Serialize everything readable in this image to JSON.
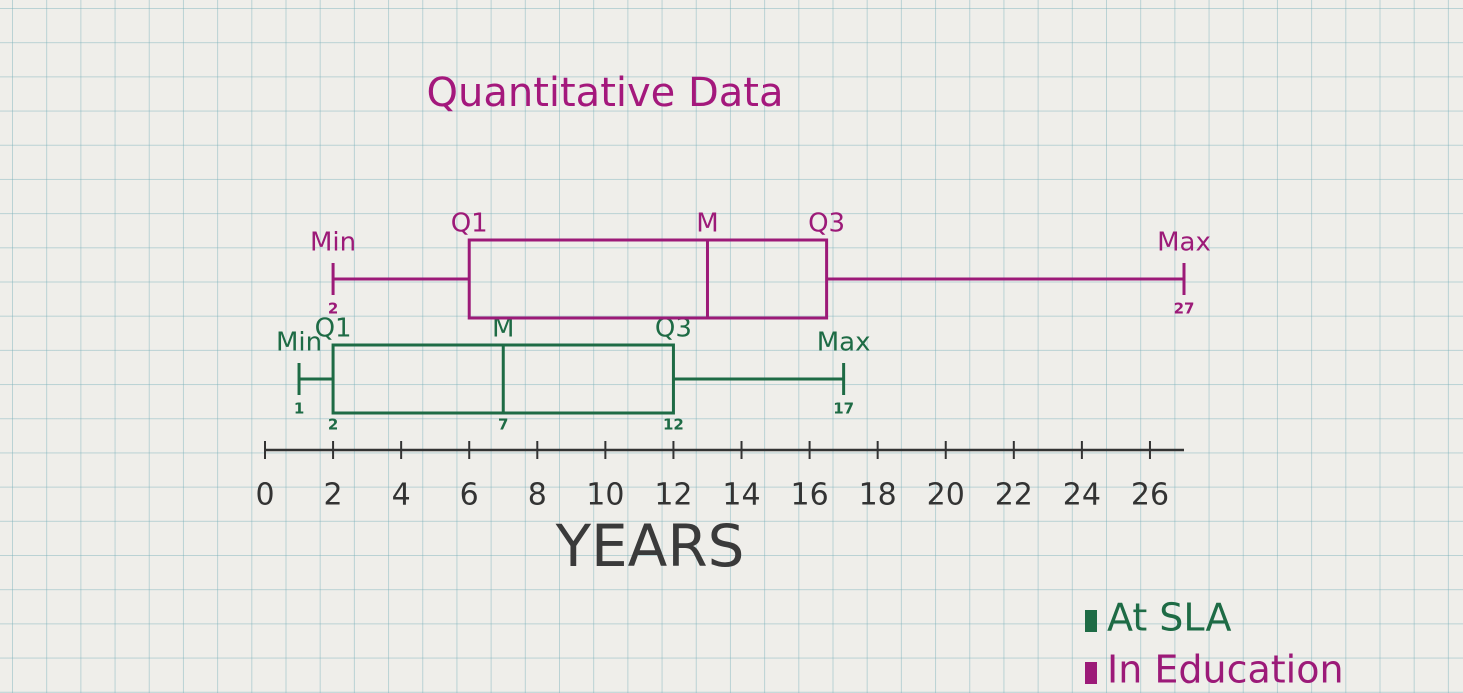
{
  "chart_data": {
    "type": "boxplot",
    "title": "Quantitative Data",
    "x_label": "YEARS",
    "xlim": [
      0,
      27
    ],
    "xticks": [
      0,
      2,
      4,
      6,
      8,
      10,
      12,
      14,
      16,
      18,
      20,
      22,
      24,
      26
    ],
    "legend": "bottom-right",
    "series": [
      {
        "name": "At SLA",
        "color": "#1e6b45",
        "labels": [
          "Min",
          "Q1",
          "M",
          "Q3",
          "Max"
        ],
        "values": [
          1,
          2,
          7,
          12,
          17
        ],
        "value_labels": [
          "1",
          "2",
          "7",
          "12",
          "17"
        ]
      },
      {
        "name": "In Education",
        "color": "#9c1a78",
        "labels": [
          "Min",
          "Q1",
          "M",
          "Q3",
          "Max"
        ],
        "values": [
          2,
          6,
          13,
          16.5,
          27
        ],
        "value_labels": [
          "2",
          null,
          null,
          null,
          "27"
        ]
      }
    ]
  }
}
